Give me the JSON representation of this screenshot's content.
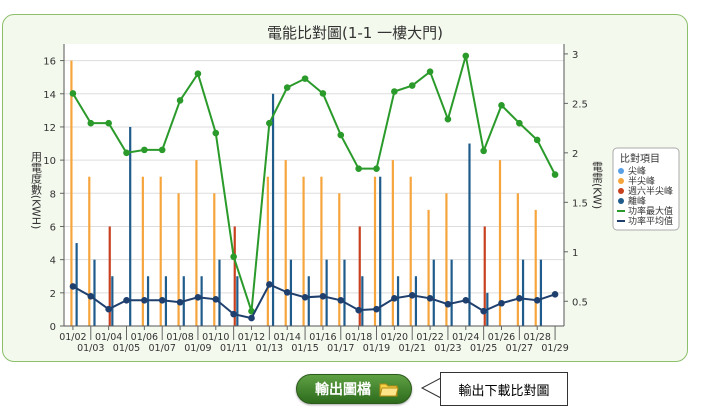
{
  "chart_data": {
    "type": "bar",
    "title": "電能比對圖(1-1 一樓大門)",
    "y_left_label": "用電度數(KWH)",
    "y_right_label": "電需(KW)",
    "y_left_ticks": [
      0,
      2,
      4,
      6,
      8,
      10,
      12,
      14,
      16
    ],
    "y_right_ticks": [
      0.5,
      1,
      1.5,
      2,
      2.5,
      3
    ],
    "ylim_left": [
      0,
      17
    ],
    "ylim_right": [
      0.25,
      3.1
    ],
    "categories": [
      "01/02",
      "01/03",
      "01/04",
      "01/05",
      "01/06",
      "01/07",
      "01/08",
      "01/09",
      "01/10",
      "01/11",
      "01/12",
      "01/13",
      "01/14",
      "01/15",
      "01/16",
      "01/17",
      "01/18",
      "01/19",
      "01/20",
      "01/21",
      "01/22",
      "01/23",
      "01/24",
      "01/25",
      "01/26",
      "01/27",
      "01/28",
      "01/29"
    ],
    "legend_title": "比對項目",
    "legend_position": "right",
    "series": [
      {
        "name": "尖峰",
        "kind": "bar",
        "color": "#5aa0e6",
        "values": [
          0,
          0,
          0,
          0,
          0,
          0,
          0,
          0,
          0,
          0,
          0,
          0,
          0,
          0,
          0,
          0,
          0,
          0,
          0,
          0,
          0,
          0,
          0,
          0,
          0,
          0,
          0,
          0
        ]
      },
      {
        "name": "半尖峰",
        "kind": "bar",
        "color": "#f6a53c",
        "values": [
          16,
          9,
          0,
          0,
          9,
          9,
          8,
          10,
          8,
          0,
          0,
          9,
          10,
          9,
          9,
          8,
          0,
          9,
          10,
          9,
          7,
          8,
          0,
          0,
          10,
          8,
          7,
          0
        ]
      },
      {
        "name": "週六半尖峰",
        "kind": "bar",
        "color": "#c8401e",
        "values": [
          0,
          0,
          6,
          0,
          0,
          0,
          0,
          0,
          0,
          6,
          0,
          0,
          0,
          0,
          0,
          0,
          6,
          0,
          0,
          0,
          0,
          0,
          0,
          6,
          0,
          0,
          0,
          0
        ]
      },
      {
        "name": "離峰",
        "kind": "bar",
        "color": "#1f5c8c",
        "values": [
          5,
          4,
          3,
          12,
          3,
          3,
          3,
          3,
          4,
          3,
          0,
          14,
          4,
          3,
          4,
          4,
          3,
          9,
          3,
          3,
          4,
          4,
          11,
          2,
          0,
          4,
          4,
          0
        ]
      },
      {
        "name": "功率最大值",
        "kind": "line",
        "axis": "right",
        "color": "#2a9a2a",
        "values": [
          2.6,
          2.3,
          2.3,
          2.0,
          2.03,
          2.03,
          2.53,
          2.8,
          2.2,
          0.95,
          0.4,
          2.3,
          2.66,
          2.75,
          2.6,
          2.18,
          1.84,
          1.84,
          2.62,
          2.68,
          2.82,
          2.34,
          2.98,
          2.02,
          2.48,
          2.3,
          2.13,
          1.78
        ]
      },
      {
        "name": "功率平均值",
        "kind": "line",
        "axis": "right",
        "color": "#1f3f6e",
        "values": [
          0.65,
          0.55,
          0.42,
          0.51,
          0.51,
          0.51,
          0.49,
          0.54,
          0.52,
          0.37,
          0.33,
          0.67,
          0.59,
          0.54,
          0.55,
          0.51,
          0.41,
          0.42,
          0.53,
          0.56,
          0.53,
          0.47,
          0.51,
          0.4,
          0.48,
          0.53,
          0.51,
          0.57
        ]
      }
    ]
  },
  "export_button": {
    "label": "輸出圖檔"
  },
  "callout": {
    "text": "輸出下載比對圖"
  }
}
